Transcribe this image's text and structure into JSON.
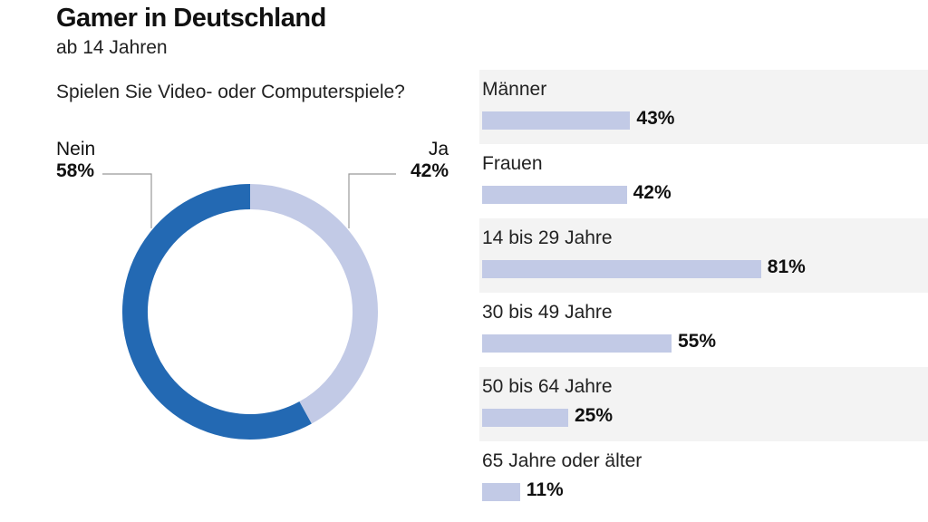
{
  "chart_data": [
    {
      "type": "pie",
      "title": "Gamer in Deutschland",
      "subtitle": "ab 14 Jahren",
      "question": "Spielen Sie Video- oder Computerspiele?",
      "slices": [
        {
          "label": "Nein",
          "value": 58,
          "display": "58%",
          "color": "#2369b3"
        },
        {
          "label": "Ja",
          "value": 42,
          "display": "42%",
          "color": "#c2cae6"
        }
      ]
    },
    {
      "type": "bar",
      "orientation": "horizontal",
      "categories": [
        "Männer",
        "Frauen",
        "14 bis 29 Jahre",
        "30 bis 49 Jahre",
        "50 bis 64 Jahre",
        "65 Jahre oder älter"
      ],
      "values": [
        43,
        42,
        81,
        55,
        25,
        11
      ],
      "value_labels": [
        "43%",
        "42%",
        "81%",
        "55%",
        "25%",
        "11%"
      ],
      "xlim": [
        0,
        100
      ],
      "bar_color": "#c2cae6",
      "row_shading": "alternating light gray"
    }
  ]
}
